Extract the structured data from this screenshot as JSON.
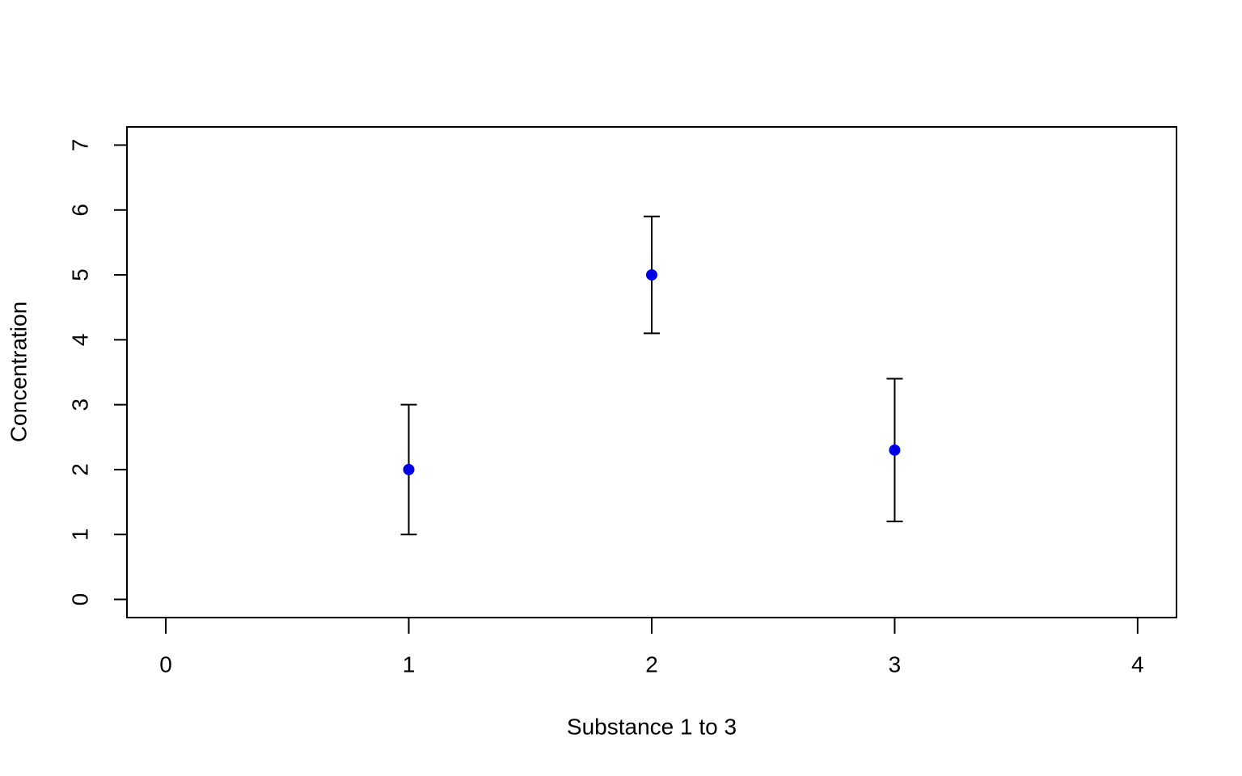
{
  "chart_data": {
    "type": "scatter",
    "x_label": "Substance 1 to 3",
    "y_label": "Concentration",
    "x": [
      1,
      2,
      3
    ],
    "values": [
      2,
      5,
      2.3
    ],
    "errors": [
      1,
      0.9,
      1.1
    ],
    "color": "#0000e6",
    "xlim": [
      -0.16,
      4.16
    ],
    "ylim": [
      -0.28,
      7.28
    ],
    "xticks": [
      0,
      1,
      2,
      3,
      4
    ],
    "yticks": [
      0,
      1,
      2,
      3,
      4,
      5,
      6,
      7
    ]
  }
}
